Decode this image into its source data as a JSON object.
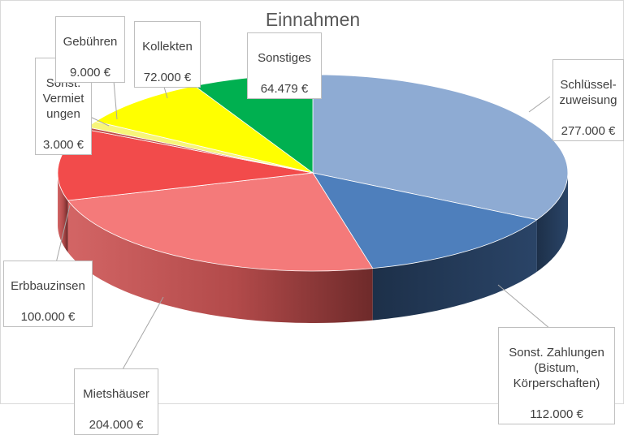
{
  "chart_data": {
    "type": "pie",
    "title": "Einnahmen",
    "unit": "€",
    "slices": [
      {
        "label": "Schlüssel-\nzuweisung",
        "value": 277000,
        "value_label": "277.000 €",
        "color": "#8eabd3"
      },
      {
        "label": "Sonst. Zahlungen\n(Bistum,\nKörperschaften)",
        "value": 112000,
        "value_label": "112.000 €",
        "color": "#4e7fbc"
      },
      {
        "label": "Mietshäuser",
        "value": 204000,
        "value_label": "204.000 €",
        "color": "#f47a7a"
      },
      {
        "label": "Erbbauzinsen",
        "value": 100000,
        "value_label": "100.000 €",
        "color": "#f24b4b"
      },
      {
        "label": "Sonst.\nVermiet\nungen",
        "value": 3000,
        "value_label": "3.000 €",
        "color": "#c0504d"
      },
      {
        "label": "Gebühren",
        "value": 9000,
        "value_label": "9.000 €",
        "color": "#f7f57a"
      },
      {
        "label": "Kollekten",
        "value": 72000,
        "value_label": "72.000 €",
        "color": "#ffff00"
      },
      {
        "label": "Sonstiges",
        "value": 64479,
        "value_label": "64.479 €",
        "color": "#00b050"
      }
    ],
    "side_colors": {
      "Sonst. Zahlungen\n(Bistum,\nKörperschaften)": "#1f3350",
      "Schlüssel-\nzuweisung": "#27405f",
      "Mietshäuser": "#b24a4a",
      "Erbbauzinsen": "#a53a3a"
    }
  }
}
